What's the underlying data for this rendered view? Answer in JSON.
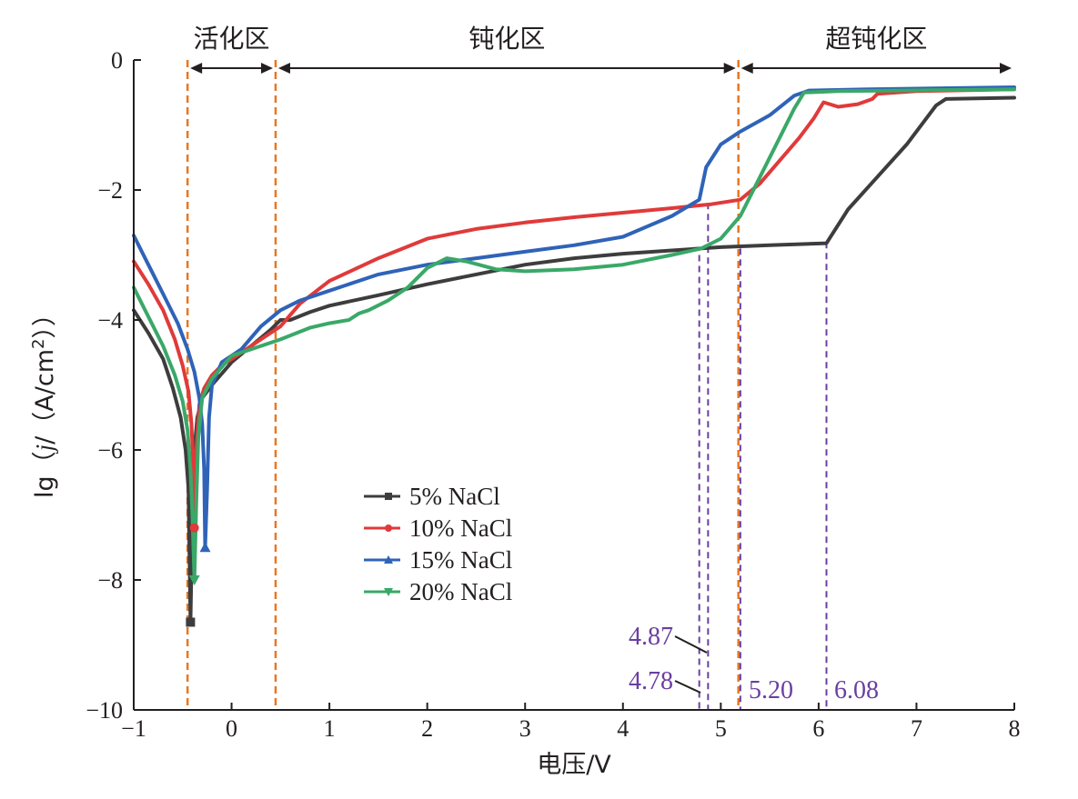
{
  "chart_data": {
    "type": "line",
    "xlabel": "电压/V",
    "ylabel_parts": [
      "lg（",
      "j",
      "/（A/cm",
      "2",
      "））"
    ],
    "xlim": [
      -1,
      8
    ],
    "ylim": [
      -10,
      0
    ],
    "x_ticks": [
      -1,
      0,
      1,
      2,
      3,
      4,
      5,
      6,
      7,
      8
    ],
    "y_ticks": [
      0,
      -2,
      -4,
      -6,
      -8,
      -10
    ],
    "x_tick_labels": [
      "−1",
      "0",
      "1",
      "2",
      "3",
      "4",
      "5",
      "6",
      "7",
      "8"
    ],
    "y_tick_labels": [
      "0",
      "−2",
      "−4",
      "−6",
      "−8",
      "−10"
    ],
    "grid": false,
    "legend_position": "lower-center",
    "regions": [
      {
        "label": "活化区",
        "x_start": -0.45,
        "x_end": 0.45
      },
      {
        "label": "钝化区",
        "x_start": 0.45,
        "x_end": 5.18
      },
      {
        "label": "超钝化区",
        "x_start": 5.18,
        "x_end": 8
      }
    ],
    "region_boundaries": {
      "color": "#e87722",
      "x": [
        -0.45,
        0.45,
        5.18
      ]
    },
    "vlines": [
      {
        "x": 4.78,
        "label": "4.78"
      },
      {
        "x": 4.87,
        "label": "4.87"
      },
      {
        "x": 5.2,
        "label": "5.20"
      },
      {
        "x": 6.08,
        "label": "6.08"
      }
    ],
    "vline_color": "#6a3fa0",
    "series": [
      {
        "name": "5% NaCl",
        "color": "#3d3d3d",
        "marker": "square",
        "points": [
          [
            -1,
            -3.85
          ],
          [
            -0.85,
            -4.2
          ],
          [
            -0.7,
            -4.6
          ],
          [
            -0.6,
            -5.05
          ],
          [
            -0.52,
            -5.5
          ],
          [
            -0.47,
            -6.0
          ],
          [
            -0.44,
            -6.6
          ],
          [
            -0.42,
            -8.65
          ],
          [
            -0.4,
            -7.0
          ],
          [
            -0.38,
            -6.0
          ],
          [
            -0.35,
            -5.5
          ],
          [
            -0.3,
            -5.2
          ],
          [
            -0.2,
            -5.0
          ],
          [
            0,
            -4.65
          ],
          [
            0.2,
            -4.4
          ],
          [
            0.4,
            -4.15
          ],
          [
            0.5,
            -4.0
          ],
          [
            0.6,
            -4.0
          ],
          [
            0.8,
            -3.88
          ],
          [
            1.0,
            -3.78
          ],
          [
            1.5,
            -3.62
          ],
          [
            2.0,
            -3.45
          ],
          [
            2.5,
            -3.3
          ],
          [
            3.0,
            -3.15
          ],
          [
            3.5,
            -3.05
          ],
          [
            4.0,
            -2.98
          ],
          [
            4.5,
            -2.93
          ],
          [
            5.0,
            -2.88
          ],
          [
            5.5,
            -2.85
          ],
          [
            6.08,
            -2.82
          ],
          [
            6.3,
            -2.3
          ],
          [
            6.6,
            -1.8
          ],
          [
            6.9,
            -1.3
          ],
          [
            7.2,
            -0.7
          ],
          [
            7.3,
            -0.6
          ],
          [
            8.0,
            -0.58
          ]
        ]
      },
      {
        "name": "10% NaCl",
        "color": "#e03a3a",
        "marker": "circle",
        "points": [
          [
            -1,
            -3.1
          ],
          [
            -0.85,
            -3.45
          ],
          [
            -0.7,
            -3.85
          ],
          [
            -0.58,
            -4.3
          ],
          [
            -0.5,
            -4.7
          ],
          [
            -0.44,
            -5.1
          ],
          [
            -0.41,
            -5.6
          ],
          [
            -0.39,
            -6.3
          ],
          [
            -0.38,
            -7.2
          ],
          [
            -0.36,
            -6.0
          ],
          [
            -0.33,
            -5.3
          ],
          [
            -0.28,
            -5.05
          ],
          [
            -0.2,
            -4.85
          ],
          [
            -0.1,
            -4.7
          ],
          [
            0.1,
            -4.5
          ],
          [
            0.3,
            -4.3
          ],
          [
            0.5,
            -4.1
          ],
          [
            0.7,
            -3.75
          ],
          [
            1.0,
            -3.4
          ],
          [
            1.5,
            -3.05
          ],
          [
            2.0,
            -2.75
          ],
          [
            2.5,
            -2.6
          ],
          [
            3.0,
            -2.5
          ],
          [
            3.5,
            -2.42
          ],
          [
            4.0,
            -2.35
          ],
          [
            4.5,
            -2.28
          ],
          [
            4.9,
            -2.22
          ],
          [
            5.2,
            -2.15
          ],
          [
            5.4,
            -1.9
          ],
          [
            5.6,
            -1.55
          ],
          [
            5.8,
            -1.2
          ],
          [
            5.95,
            -0.9
          ],
          [
            6.05,
            -0.65
          ],
          [
            6.2,
            -0.72
          ],
          [
            6.4,
            -0.68
          ],
          [
            6.55,
            -0.6
          ],
          [
            6.6,
            -0.52
          ],
          [
            7.0,
            -0.48
          ],
          [
            8.0,
            -0.45
          ]
        ]
      },
      {
        "name": "15% NaCl",
        "color": "#2f63b8",
        "marker": "triangle-up",
        "points": [
          [
            -1,
            -2.7
          ],
          [
            -0.85,
            -3.15
          ],
          [
            -0.7,
            -3.6
          ],
          [
            -0.55,
            -4.05
          ],
          [
            -0.45,
            -4.45
          ],
          [
            -0.38,
            -4.8
          ],
          [
            -0.33,
            -5.2
          ],
          [
            -0.3,
            -5.6
          ],
          [
            -0.28,
            -6.3
          ],
          [
            -0.27,
            -7.5
          ],
          [
            -0.25,
            -6.6
          ],
          [
            -0.23,
            -5.5
          ],
          [
            -0.2,
            -5.0
          ],
          [
            -0.1,
            -4.65
          ],
          [
            0.1,
            -4.45
          ],
          [
            0.3,
            -4.1
          ],
          [
            0.5,
            -3.85
          ],
          [
            0.7,
            -3.7
          ],
          [
            1.0,
            -3.55
          ],
          [
            1.5,
            -3.3
          ],
          [
            2.0,
            -3.15
          ],
          [
            2.5,
            -3.05
          ],
          [
            3.0,
            -2.95
          ],
          [
            3.5,
            -2.85
          ],
          [
            4.0,
            -2.72
          ],
          [
            4.5,
            -2.4
          ],
          [
            4.78,
            -2.15
          ],
          [
            4.85,
            -1.65
          ],
          [
            5.0,
            -1.3
          ],
          [
            5.2,
            -1.1
          ],
          [
            5.5,
            -0.85
          ],
          [
            5.75,
            -0.55
          ],
          [
            5.9,
            -0.47
          ],
          [
            6.5,
            -0.45
          ],
          [
            8.0,
            -0.42
          ]
        ]
      },
      {
        "name": "20% NaCl",
        "color": "#3aa868",
        "marker": "triangle-down",
        "points": [
          [
            -1,
            -3.5
          ],
          [
            -0.85,
            -3.95
          ],
          [
            -0.7,
            -4.4
          ],
          [
            -0.58,
            -4.85
          ],
          [
            -0.5,
            -5.25
          ],
          [
            -0.45,
            -5.7
          ],
          [
            -0.42,
            -6.3
          ],
          [
            -0.4,
            -7.0
          ],
          [
            -0.38,
            -8.0
          ],
          [
            -0.36,
            -6.8
          ],
          [
            -0.34,
            -5.8
          ],
          [
            -0.3,
            -5.2
          ],
          [
            -0.2,
            -4.9
          ],
          [
            0.0,
            -4.55
          ],
          [
            0.2,
            -4.45
          ],
          [
            0.4,
            -4.35
          ],
          [
            0.5,
            -4.3
          ],
          [
            0.8,
            -4.12
          ],
          [
            1.0,
            -4.05
          ],
          [
            1.2,
            -4.0
          ],
          [
            1.3,
            -3.9
          ],
          [
            1.4,
            -3.85
          ],
          [
            1.6,
            -3.7
          ],
          [
            1.8,
            -3.5
          ],
          [
            2.0,
            -3.2
          ],
          [
            2.2,
            -3.05
          ],
          [
            2.4,
            -3.1
          ],
          [
            2.7,
            -3.22
          ],
          [
            3.0,
            -3.25
          ],
          [
            3.5,
            -3.22
          ],
          [
            4.0,
            -3.15
          ],
          [
            4.5,
            -3.0
          ],
          [
            4.8,
            -2.9
          ],
          [
            5.0,
            -2.75
          ],
          [
            5.2,
            -2.4
          ],
          [
            5.4,
            -1.8
          ],
          [
            5.6,
            -1.2
          ],
          [
            5.75,
            -0.75
          ],
          [
            5.85,
            -0.5
          ],
          [
            6.2,
            -0.48
          ],
          [
            8.0,
            -0.45
          ]
        ]
      }
    ]
  }
}
